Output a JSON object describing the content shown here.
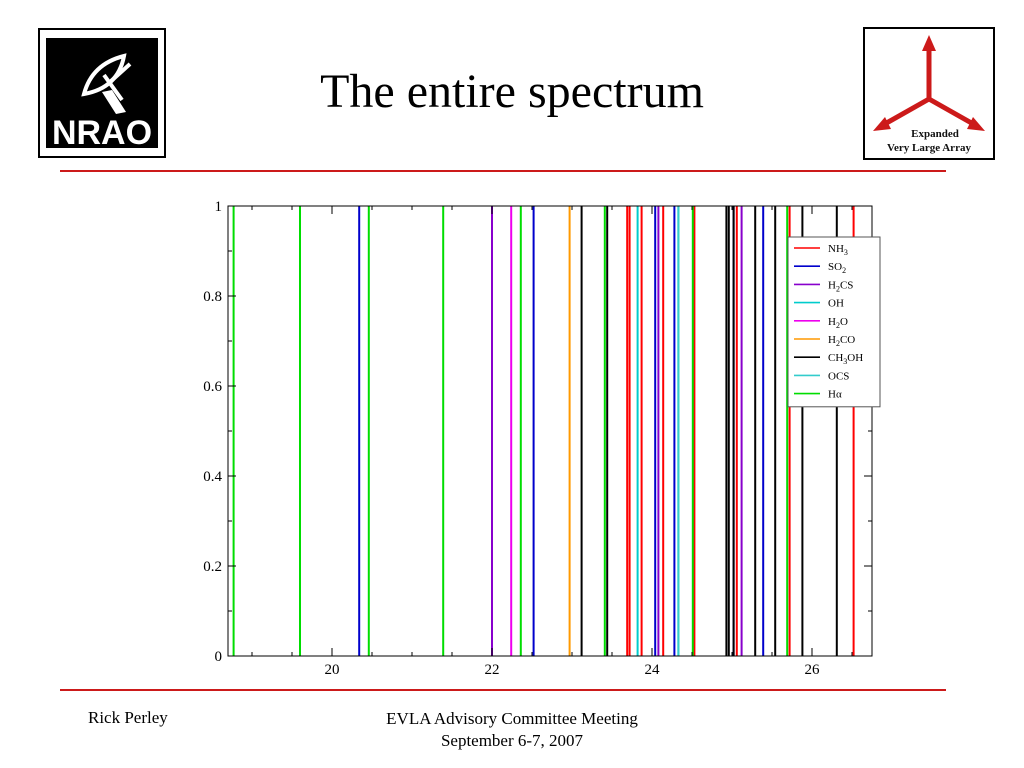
{
  "slide": {
    "title": "The entire spectrum",
    "logo_left": {
      "text": "NRAO",
      "icon": "nrao-dish-logo"
    },
    "logo_right": {
      "line1": "Expanded",
      "line2": "Very Large Array",
      "icon": "evla-red-arrows-logo",
      "accent": "#cc1a1a"
    },
    "footer": {
      "author": "Rick Perley",
      "event": "EVLA Advisory Committee Meeting",
      "date": "September 6-7, 2007"
    },
    "rule_color": "#cc1a1a"
  },
  "chart_data": {
    "type": "line",
    "title": "",
    "xlabel": "",
    "ylabel": "",
    "xlim": [
      18.7,
      26.75
    ],
    "ylim": [
      0,
      1
    ],
    "xticks": [
      20,
      22,
      24,
      26
    ],
    "yticks": [
      0,
      0.2,
      0.4,
      0.6,
      0.8,
      1
    ],
    "ytick_labels": [
      "0",
      "0.2",
      "0.4",
      "0.6",
      "0.8",
      "1"
    ],
    "grid": false,
    "legend_placement": "top-right",
    "series": [
      {
        "name": "NH3",
        "legend_main": "NH",
        "legend_sub": "3",
        "legend_after": "",
        "color": "#ff0000",
        "x": [
          23.69,
          23.72,
          23.87,
          24.14,
          24.53,
          25.06,
          25.72,
          26.52
        ]
      },
      {
        "name": "SO2",
        "legend_main": "SO",
        "legend_sub": "2",
        "legend_after": "",
        "color": "#0000cc",
        "x": [
          20.34,
          22.52,
          24.04,
          24.28,
          25.02,
          25.39
        ]
      },
      {
        "name": "H2CS",
        "legend_main": "H",
        "legend_sub": "2",
        "legend_after": "CS",
        "color": "#8800cc",
        "x": [
          22.0,
          24.08,
          25.12
        ]
      },
      {
        "name": "OH",
        "legend_main": "OH",
        "legend_sub": "",
        "legend_after": "",
        "color": "#00cccc",
        "x": [
          23.82,
          24.33
        ]
      },
      {
        "name": "H2O",
        "legend_main": "H",
        "legend_sub": "2",
        "legend_after": "O",
        "color": "#ee00ee",
        "x": [
          22.24
        ]
      },
      {
        "name": "H2CO",
        "legend_main": "H",
        "legend_sub": "2",
        "legend_after": "CO",
        "color": "#ff9900",
        "x": [
          22.97
        ]
      },
      {
        "name": "CH3OH",
        "legend_main": "CH",
        "legend_sub": "3",
        "legend_after": "OH",
        "color": "#000000",
        "x": [
          23.12,
          23.44,
          24.93,
          24.96,
          25.02,
          25.29,
          25.54,
          25.88,
          26.31
        ]
      },
      {
        "name": "OCS",
        "legend_main": "OCS",
        "legend_sub": "",
        "legend_after": "",
        "color": "#33cccc",
        "x": [
          24.33
        ]
      },
      {
        "name": "Hα",
        "legend_main": "Hα",
        "legend_sub": "",
        "legend_after": "",
        "color": "#00dd00",
        "x": [
          18.77,
          19.6,
          20.46,
          21.39,
          22.36,
          23.41,
          24.51,
          25.69
        ]
      }
    ]
  }
}
